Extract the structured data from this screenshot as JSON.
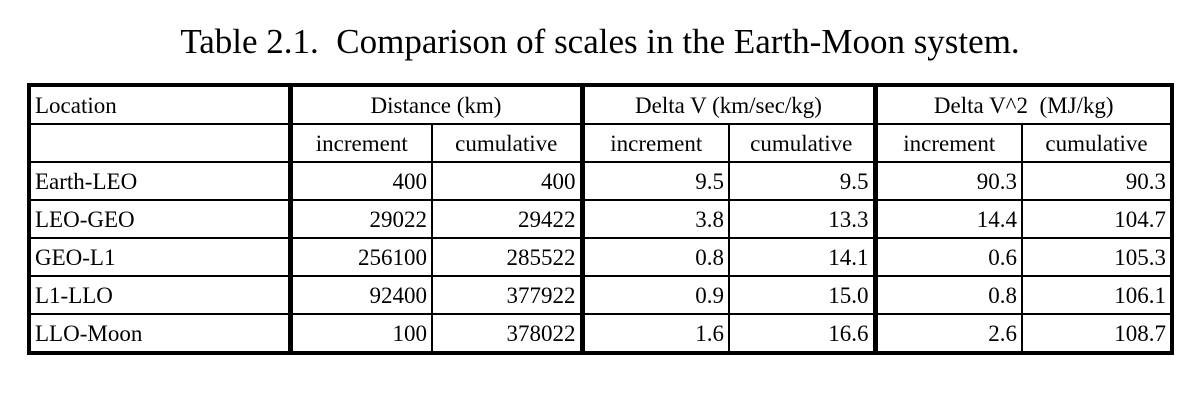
{
  "title": "Table 2.1.  Comparison of scales in the Earth-Moon system.",
  "table": {
    "header": [
      "Location",
      "Distance (km)",
      "Delta V (km/sec/kg)",
      "Delta V^2  (MJ/kg)"
    ],
    "subheader": [
      "increment",
      "cumulative",
      "increment",
      "cumulative",
      "increment",
      "cumulative"
    ],
    "rows": [
      [
        "Earth-LEO",
        "400",
        "400",
        "9.5",
        "9.5",
        "90.3",
        "90.3"
      ],
      [
        "LEO-GEO",
        "29022",
        "29422",
        "3.8",
        "13.3",
        "14.4",
        "104.7"
      ],
      [
        "GEO-L1",
        "256100",
        "285522",
        "0.8",
        "14.1",
        "0.6",
        "105.3"
      ],
      [
        "L1-LLO",
        "92400",
        "377922",
        "0.9",
        "15.0",
        "0.8",
        "106.1"
      ],
      [
        "LLO-Moon",
        "100",
        "378022",
        "1.6",
        "16.6",
        "2.6",
        "108.7"
      ]
    ]
  }
}
